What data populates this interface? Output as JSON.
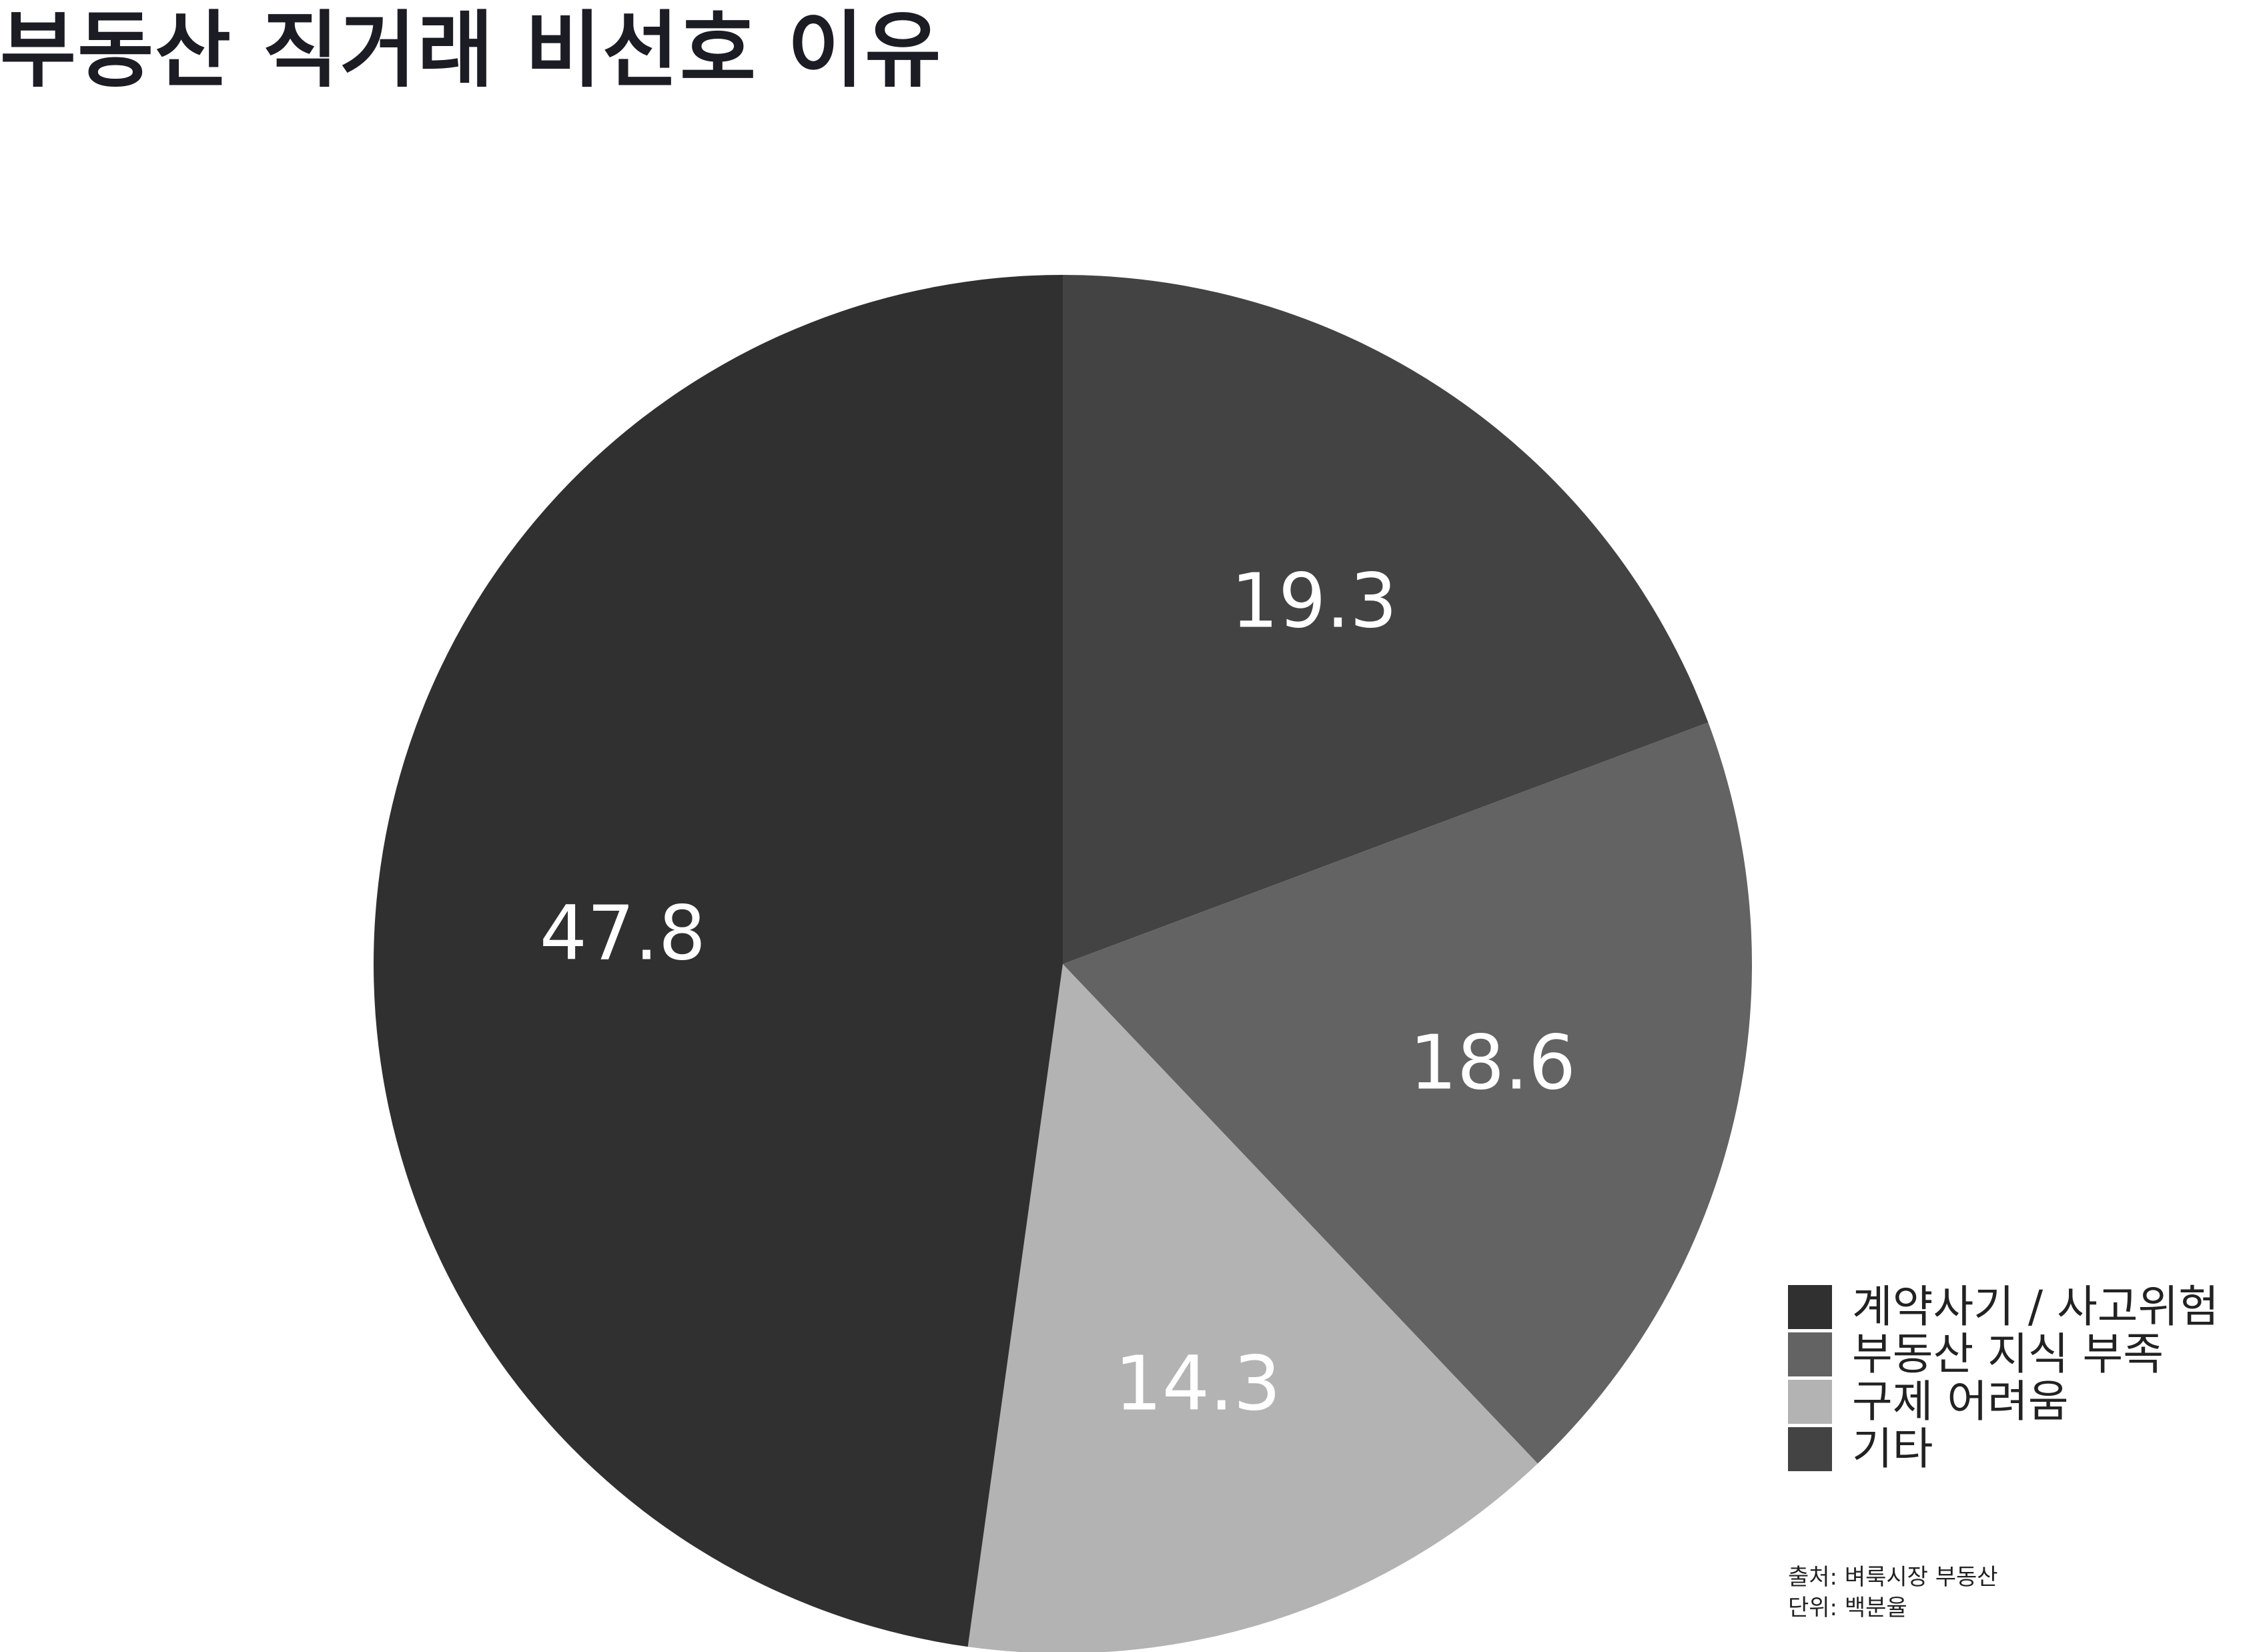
{
  "chart_data": {
    "type": "pie",
    "title": "부동산 직거래 비선호 이유",
    "categories": [
      "계약사기 / 사고위험",
      "부동산 지식 부족",
      "구제 어려움",
      "기타"
    ],
    "values": [
      47.8,
      18.6,
      14.3,
      19.3
    ],
    "data_labels": [
      "47.8",
      "18.6",
      "14.3",
      "19.3"
    ],
    "colors": [
      "#303030",
      "#636363",
      "#b3b3b3",
      "#434343"
    ],
    "legend_position": "bottom-right",
    "slice_order": "clockwise from top, starting with 기타 (19.3) on the right"
  },
  "footnote": {
    "source": "출처: 벼룩시장 부동산",
    "unit": "단위: 백분율"
  }
}
